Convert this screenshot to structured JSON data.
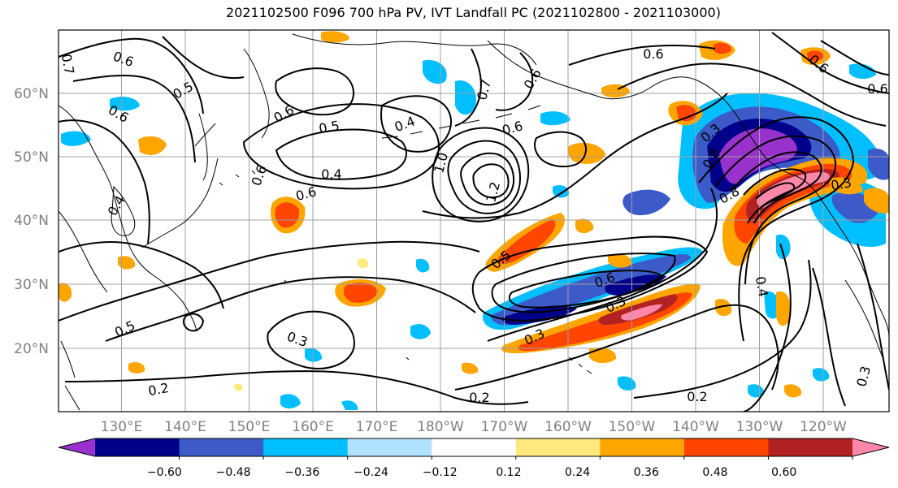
{
  "title": "2021102500 F096 700 hPa PV, IVT Landfall PC (2021102800 - 2021103000)",
  "lat_labels": [
    "60°N",
    "50°N",
    "40°N",
    "30°N",
    "20°N"
  ],
  "lon_labels": [
    "130°E",
    "140°E",
    "150°E",
    "160°E",
    "170°E",
    "180°W",
    "170°W",
    "160°W",
    "150°W",
    "140°W",
    "130°W",
    "120°W"
  ],
  "contour_labels": [
    "0.6",
    "0.5",
    "0.6",
    "0.4",
    "0.5",
    "0.4",
    "0.6",
    "0.6",
    "1.0",
    "1.2",
    "0.5",
    "0.4",
    "0.6",
    "0.7",
    "0.6",
    "0.6",
    "0.5",
    "0.6",
    "0.3",
    "0.2",
    "0.2",
    "0.3",
    "0.2",
    "0.3",
    "0.6",
    "0.3",
    "0.8",
    "0.4",
    "0.3",
    "0.8",
    "0.3",
    "0.6",
    "0.7",
    "0.6"
  ],
  "colorbar": {
    "ticks": [
      "−0.60",
      "−0.48",
      "−0.36",
      "−0.24",
      "−0.12",
      "0.12",
      "0.24",
      "0.36",
      "0.48",
      "0.60"
    ],
    "colors": [
      "#9932cc",
      "#00008b",
      "#3c5ac8",
      "#00bfff",
      "#b0e2ff",
      "#ffffff",
      "#ffe97f",
      "#ffa500",
      "#ff4500",
      "#b22222",
      "#ff88aa"
    ]
  },
  "colors": {
    "frame": "#000000",
    "grid": "#a0a0a0",
    "coast": "#000000",
    "lat_label": "#808080",
    "lon_label": "#808080"
  }
}
